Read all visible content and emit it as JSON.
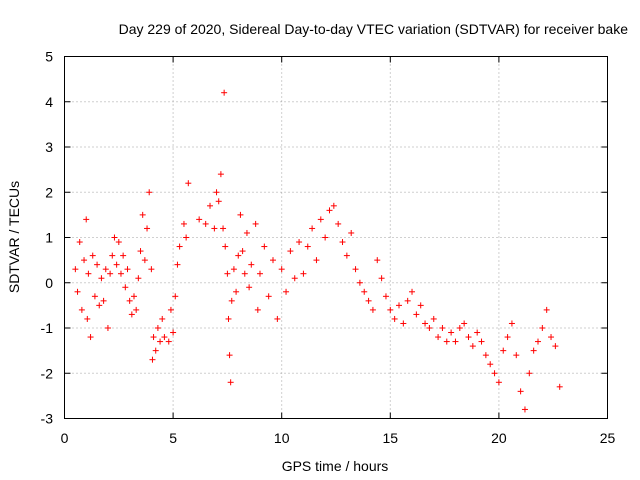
{
  "chart_data": {
    "type": "scatter",
    "title": "Day 229 of 2020, Sidereal Day-to-day VTEC variation (SDTVAR) for receiver bake",
    "xlabel": "GPS time / hours",
    "ylabel": "SDTVAR / TECUs",
    "xlim": [
      0,
      25
    ],
    "ylim": [
      -3,
      5
    ],
    "xticks": [
      0,
      5,
      10,
      15,
      20,
      25
    ],
    "yticks": [
      -3,
      -2,
      -1,
      0,
      1,
      2,
      3,
      4,
      5
    ],
    "grid": true,
    "marker": "+",
    "color": "#ff0000",
    "series": [
      {
        "name": "SDTVAR",
        "trace": [
          [
            0.5,
            0.3
          ],
          [
            0.6,
            -0.2
          ],
          [
            0.7,
            0.9
          ],
          [
            0.8,
            -0.6
          ],
          [
            0.9,
            0.5
          ],
          [
            1.0,
            1.4
          ],
          [
            1.05,
            -0.8
          ],
          [
            1.1,
            0.2
          ],
          [
            1.2,
            -1.2
          ],
          [
            1.3,
            0.6
          ],
          [
            1.4,
            -0.3
          ],
          [
            1.5,
            0.4
          ],
          [
            1.6,
            -0.5
          ],
          [
            1.7,
            0.1
          ],
          [
            1.8,
            -0.4
          ],
          [
            1.9,
            0.3
          ],
          [
            2.0,
            -1.0
          ],
          [
            2.1,
            0.2
          ],
          [
            2.2,
            0.6
          ],
          [
            2.3,
            1.0
          ],
          [
            2.4,
            0.4
          ],
          [
            2.5,
            0.9
          ],
          [
            2.6,
            0.2
          ],
          [
            2.7,
            0.6
          ],
          [
            2.8,
            -0.1
          ],
          [
            2.9,
            0.3
          ],
          [
            3.0,
            -0.4
          ],
          [
            3.1,
            -0.7
          ],
          [
            3.2,
            -0.3
          ],
          [
            3.3,
            -0.6
          ],
          [
            3.4,
            0.1
          ],
          [
            3.5,
            0.7
          ],
          [
            3.6,
            1.5
          ],
          [
            3.7,
            0.5
          ],
          [
            3.8,
            1.2
          ],
          [
            3.9,
            2.0
          ],
          [
            4.0,
            0.3
          ],
          [
            4.05,
            -1.7
          ],
          [
            4.1,
            -1.2
          ],
          [
            4.2,
            -1.5
          ],
          [
            4.3,
            -1.0
          ],
          [
            4.4,
            -1.3
          ],
          [
            4.5,
            -0.8
          ],
          [
            4.6,
            -1.2
          ],
          [
            4.8,
            -1.3
          ],
          [
            4.9,
            -0.6
          ],
          [
            5.0,
            -1.1
          ],
          [
            5.1,
            -0.3
          ],
          [
            5.2,
            0.4
          ],
          [
            5.3,
            0.8
          ],
          [
            5.5,
            1.3
          ],
          [
            5.6,
            1.0
          ],
          [
            5.7,
            2.2
          ],
          [
            6.2,
            1.4
          ],
          [
            6.5,
            1.3
          ],
          [
            6.7,
            1.7
          ],
          [
            6.9,
            1.2
          ],
          [
            7.0,
            2.0
          ],
          [
            7.1,
            1.8
          ],
          [
            7.2,
            2.4
          ],
          [
            7.3,
            1.2
          ],
          [
            7.35,
            4.2
          ],
          [
            7.4,
            0.8
          ],
          [
            7.5,
            0.2
          ],
          [
            7.55,
            -0.8
          ],
          [
            7.6,
            -1.6
          ],
          [
            7.65,
            -2.2
          ],
          [
            7.7,
            -0.4
          ],
          [
            7.8,
            0.3
          ],
          [
            7.9,
            -0.2
          ],
          [
            8.0,
            0.6
          ],
          [
            8.1,
            1.5
          ],
          [
            8.2,
            0.7
          ],
          [
            8.3,
            0.2
          ],
          [
            8.4,
            1.1
          ],
          [
            8.5,
            -0.1
          ],
          [
            8.6,
            0.4
          ],
          [
            8.8,
            1.3
          ],
          [
            8.9,
            -0.6
          ],
          [
            9.0,
            0.2
          ],
          [
            9.2,
            0.8
          ],
          [
            9.4,
            -0.3
          ],
          [
            9.6,
            0.5
          ],
          [
            9.8,
            -0.8
          ],
          [
            10.0,
            0.3
          ],
          [
            10.2,
            -0.2
          ],
          [
            10.4,
            0.7
          ],
          [
            10.6,
            0.1
          ],
          [
            10.8,
            0.9
          ],
          [
            11.0,
            0.2
          ],
          [
            11.2,
            0.8
          ],
          [
            11.4,
            1.2
          ],
          [
            11.6,
            0.5
          ],
          [
            11.8,
            1.4
          ],
          [
            12.0,
            1.0
          ],
          [
            12.2,
            1.6
          ],
          [
            12.4,
            1.7
          ],
          [
            12.6,
            1.3
          ],
          [
            12.8,
            0.9
          ],
          [
            13.0,
            0.6
          ],
          [
            13.2,
            1.1
          ],
          [
            13.4,
            0.3
          ],
          [
            13.6,
            0.0
          ],
          [
            13.8,
            -0.2
          ],
          [
            14.0,
            -0.4
          ],
          [
            14.2,
            -0.6
          ],
          [
            14.4,
            0.5
          ],
          [
            14.6,
            0.1
          ],
          [
            14.8,
            -0.3
          ],
          [
            15.0,
            -0.6
          ],
          [
            15.2,
            -0.8
          ],
          [
            15.4,
            -0.5
          ],
          [
            15.6,
            -0.9
          ],
          [
            15.8,
            -0.4
          ],
          [
            16.0,
            -0.2
          ],
          [
            16.2,
            -0.7
          ],
          [
            16.4,
            -0.5
          ],
          [
            16.6,
            -0.9
          ],
          [
            16.8,
            -1.0
          ],
          [
            17.0,
            -0.8
          ],
          [
            17.2,
            -1.2
          ],
          [
            17.4,
            -1.0
          ],
          [
            17.6,
            -1.3
          ],
          [
            17.8,
            -1.1
          ],
          [
            18.0,
            -1.3
          ],
          [
            18.2,
            -1.0
          ],
          [
            18.4,
            -0.9
          ],
          [
            18.6,
            -1.2
          ],
          [
            18.8,
            -1.4
          ],
          [
            19.0,
            -1.1
          ],
          [
            19.2,
            -1.3
          ],
          [
            19.4,
            -1.6
          ],
          [
            19.6,
            -1.8
          ],
          [
            19.8,
            -2.0
          ],
          [
            20.0,
            -2.2
          ],
          [
            20.2,
            -1.5
          ],
          [
            20.4,
            -1.2
          ],
          [
            20.6,
            -0.9
          ],
          [
            20.8,
            -1.6
          ],
          [
            21.0,
            -2.4
          ],
          [
            21.2,
            -2.8
          ],
          [
            21.4,
            -2.0
          ],
          [
            21.6,
            -1.5
          ],
          [
            21.8,
            -1.3
          ],
          [
            22.0,
            -1.0
          ],
          [
            22.2,
            -0.6
          ],
          [
            22.4,
            -1.2
          ],
          [
            22.6,
            -1.4
          ],
          [
            22.8,
            -2.3
          ]
        ]
      }
    ]
  }
}
